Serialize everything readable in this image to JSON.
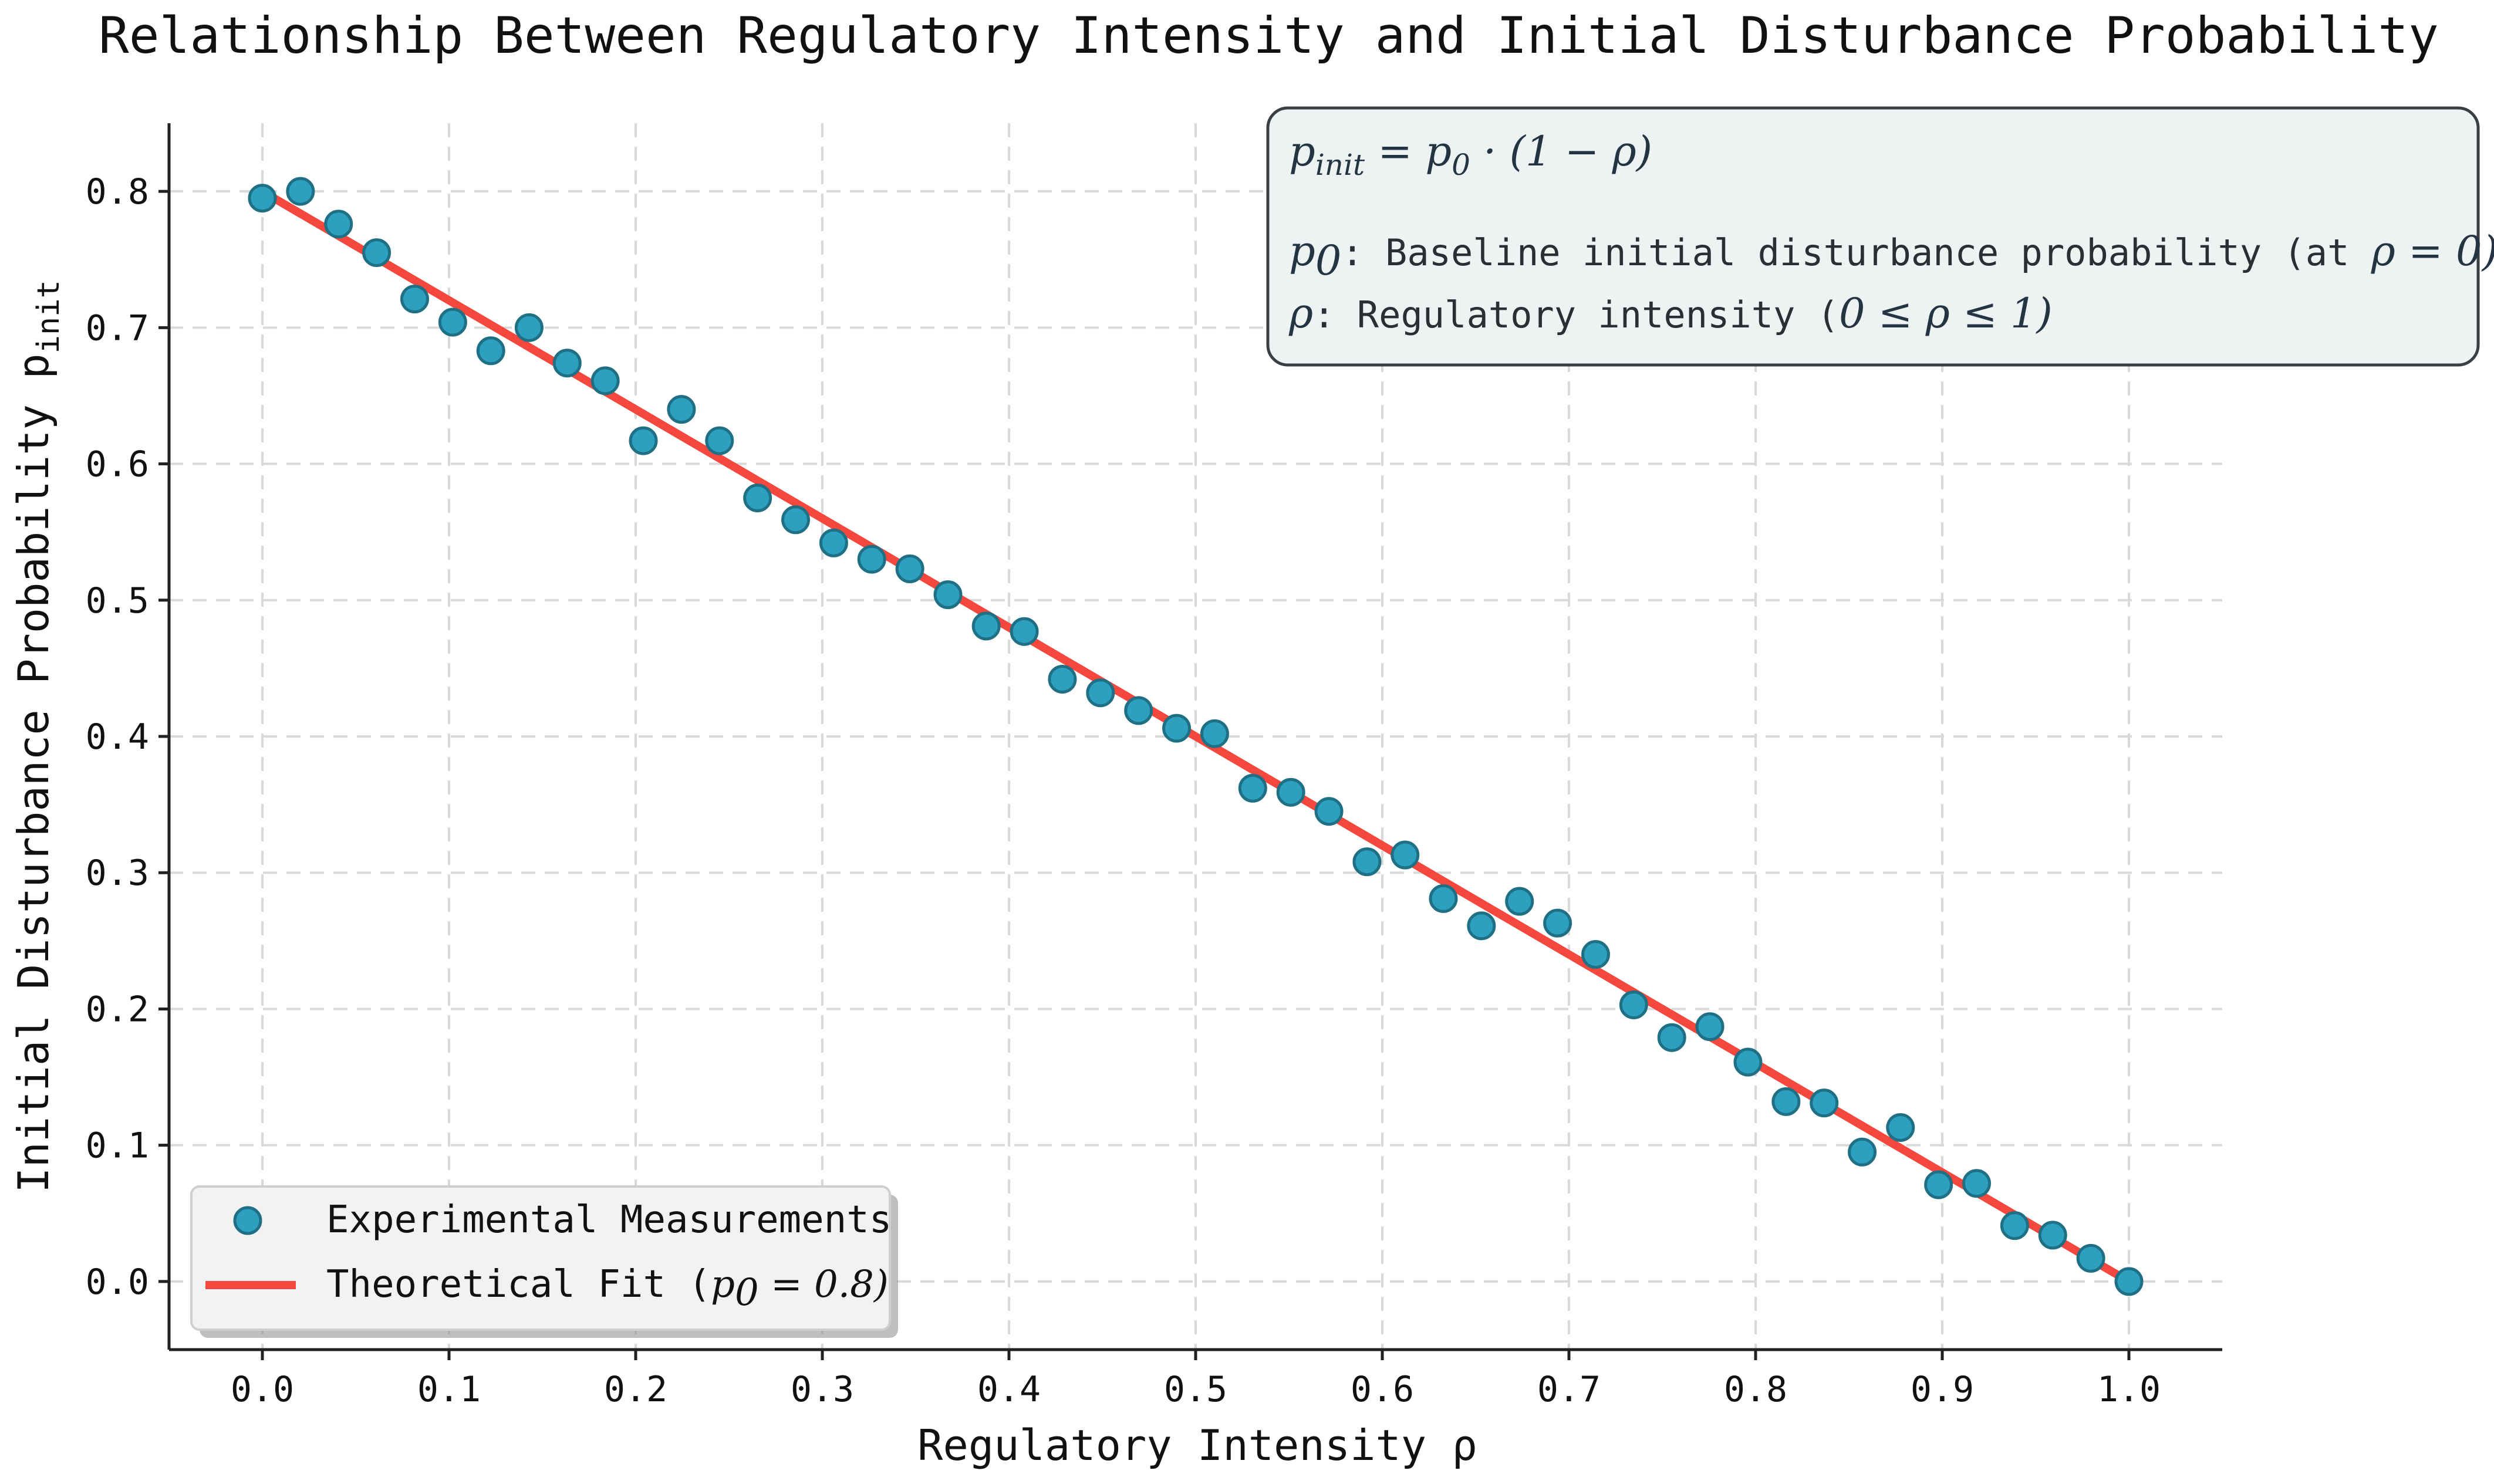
{
  "chart_data": {
    "type": "scatter",
    "title": "Relationship Between Regulatory Intensity and Initial Disturbance Probability",
    "xlabel": "Regulatory Intensity ρ",
    "ylabel": "Initial Disturbance Probability p",
    "ylabel_subscript": "init",
    "xlim": [
      -0.05,
      1.05
    ],
    "ylim": [
      -0.05,
      0.85
    ],
    "xticks": [
      0.0,
      0.1,
      0.2,
      0.3,
      0.4,
      0.5,
      0.6,
      0.7,
      0.8,
      0.9,
      1.0
    ],
    "xtick_labels": [
      "0.0",
      "0.1",
      "0.2",
      "0.3",
      "0.4",
      "0.5",
      "0.6",
      "0.7",
      "0.8",
      "0.9",
      "1.0"
    ],
    "yticks": [
      0.0,
      0.1,
      0.2,
      0.3,
      0.4,
      0.5,
      0.6,
      0.7,
      0.8
    ],
    "ytick_labels": [
      "0.0",
      "0.1",
      "0.2",
      "0.3",
      "0.4",
      "0.5",
      "0.6",
      "0.7",
      "0.8"
    ],
    "grid": true,
    "series": [
      {
        "name": "Experimental Measurements",
        "kind": "scatter",
        "color": "#2ea0bf",
        "x": [
          0.0,
          0.0204,
          0.0408,
          0.0612,
          0.0816,
          0.102,
          0.1224,
          0.1429,
          0.1633,
          0.1837,
          0.2041,
          0.2245,
          0.2449,
          0.2653,
          0.2857,
          0.3061,
          0.3265,
          0.3469,
          0.3673,
          0.3878,
          0.4082,
          0.4286,
          0.449,
          0.4694,
          0.4898,
          0.5102,
          0.5306,
          0.551,
          0.5714,
          0.5918,
          0.6122,
          0.6327,
          0.6531,
          0.6735,
          0.6939,
          0.7143,
          0.7347,
          0.7551,
          0.7755,
          0.7959,
          0.8163,
          0.8367,
          0.8571,
          0.8776,
          0.898,
          0.9184,
          0.9388,
          0.9592,
          0.9796,
          1.0
        ],
        "y": [
          0.795,
          0.8,
          0.776,
          0.755,
          0.721,
          0.704,
          0.683,
          0.7,
          0.674,
          0.661,
          0.617,
          0.64,
          0.617,
          0.575,
          0.559,
          0.542,
          0.53,
          0.523,
          0.504,
          0.481,
          0.477,
          0.442,
          0.432,
          0.419,
          0.406,
          0.402,
          0.362,
          0.359,
          0.345,
          0.308,
          0.313,
          0.281,
          0.261,
          0.279,
          0.263,
          0.24,
          0.203,
          0.179,
          0.187,
          0.161,
          0.132,
          0.131,
          0.095,
          0.113,
          0.071,
          0.072,
          0.041,
          0.034,
          0.017,
          0.0
        ]
      },
      {
        "name": "Theoretical Fit (p0 = 0.8)",
        "kind": "line",
        "color": "#f4473d",
        "x": [
          0.0,
          1.0
        ],
        "y": [
          0.8,
          0.0
        ]
      }
    ],
    "legend": {
      "position": "bottom-left",
      "scatter_label": "Experimental Measurements",
      "line_label_prefix": "Theoretical Fit (",
      "line_label_math": "p",
      "line_label_sub": "0",
      "line_label_value": " = 0.8)"
    },
    "annotation": {
      "position": "top-right",
      "formula_lhs": "p",
      "formula_lhs_sub": "init",
      "formula_rhs": " = p",
      "formula_rhs_sub": "0",
      "formula_rest": " · (1 − ρ)",
      "line1_math": "p",
      "line1_sub": "0",
      "line1_text": ": Baseline initial disturbance probability (at ",
      "line1_math_tail": "ρ = 0)",
      "line2_math": "ρ",
      "line2_text": ": Regulatory intensity (",
      "line2_math_tail": "0 ≤ ρ ≤ 1)"
    }
  },
  "colors": {
    "scatter": "#2ea0bf",
    "fit": "#f4473d",
    "box_fill": "#edf2f2",
    "box_stroke": "#3a3f44",
    "legend_fill": "#f2f2f2"
  }
}
